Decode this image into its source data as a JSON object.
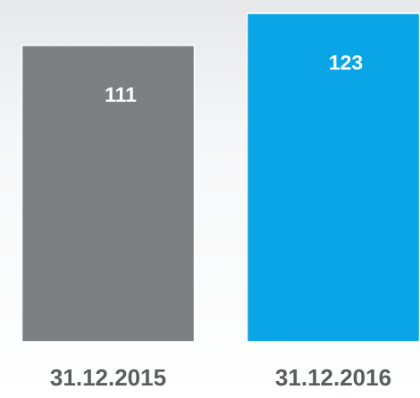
{
  "chart_data": {
    "type": "bar",
    "categories": [
      "31.12.2015",
      "31.12.2016"
    ],
    "values": [
      111,
      123
    ],
    "colors": [
      "#7d8083",
      "#0aa5e6"
    ]
  }
}
